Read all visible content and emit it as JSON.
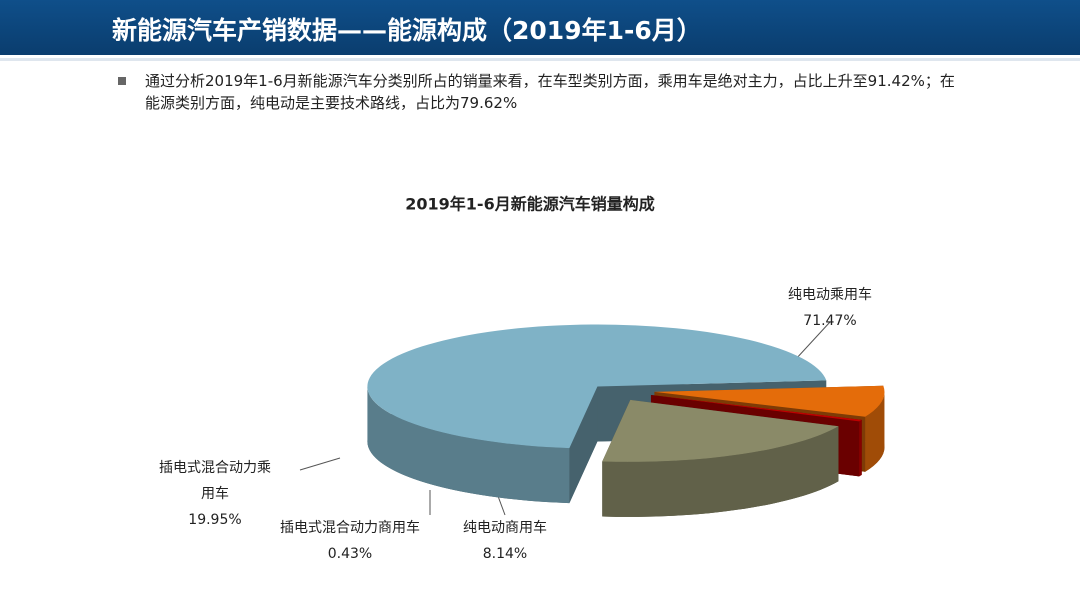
{
  "header": {
    "title": "新能源汽车产销数据——能源构成（2019年1-6月）"
  },
  "bullet": "通过分析2019年1-6月新能源汽车分类别所占的销量来看，在车型类别方面，乘用车是绝对主力，占比上升至91.42%；在能源类别方面，纯电动是主要技术路线，占比为79.62%",
  "chart_data": {
    "type": "pie",
    "title": "2019年1-6月新能源汽车销量构成",
    "categories": [
      "纯电动乘用车",
      "纯电动商用车",
      "插电式混合动力商用车",
      "插电式混合动力乘用车"
    ],
    "values": [
      71.47,
      8.14,
      0.43,
      19.95
    ],
    "value_labels": [
      "71.47%",
      "8.14%",
      "0.43%",
      "19.95%"
    ],
    "colors": [
      "#7fb2c6",
      "#e46c0a",
      "#c00000",
      "#8a8a68"
    ]
  }
}
